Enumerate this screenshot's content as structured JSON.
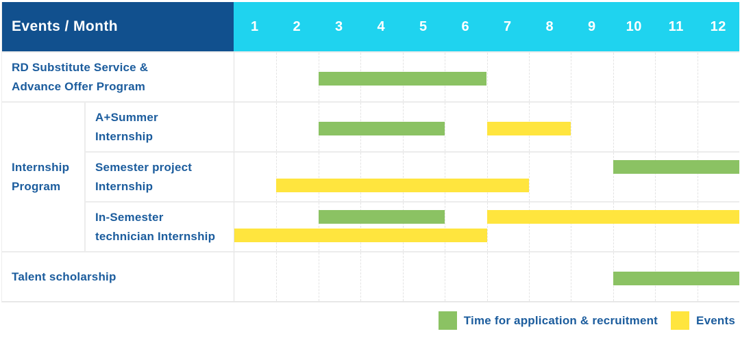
{
  "header": {
    "title": "Events / Month",
    "months": [
      "1",
      "2",
      "3",
      "4",
      "5",
      "6",
      "7",
      "8",
      "9",
      "10",
      "11",
      "12"
    ]
  },
  "group_label_lines": [
    "Internship",
    "Program"
  ],
  "rows": [
    {
      "label_lines": [
        "RD Substitute Service &",
        "Advance Offer Program"
      ],
      "group": "",
      "bars": [
        {
          "color": "green",
          "start": 3,
          "end": 6,
          "lane": "center"
        }
      ]
    },
    {
      "label_lines": [
        "A+Summer",
        "Internship"
      ],
      "group": "Internship Program",
      "bars": [
        {
          "color": "green",
          "start": 3,
          "end": 5,
          "lane": "center"
        },
        {
          "color": "yellow",
          "start": 7,
          "end": 8,
          "lane": "center"
        }
      ]
    },
    {
      "label_lines": [
        "Semester project",
        "Internship"
      ],
      "group": "Internship Program",
      "bars": [
        {
          "color": "green",
          "start": 10,
          "end": 12,
          "lane": "top"
        },
        {
          "color": "yellow",
          "start": 2,
          "end": 7,
          "lane": "bottom"
        }
      ]
    },
    {
      "label_lines": [
        "In-Semester",
        "technician Internship"
      ],
      "group": "Internship Program",
      "bars": [
        {
          "color": "green",
          "start": 3,
          "end": 5,
          "lane": "top"
        },
        {
          "color": "yellow",
          "start": 7,
          "end": 12,
          "lane": "top"
        },
        {
          "color": "yellow",
          "start": 1,
          "end": 6,
          "lane": "bottom"
        }
      ]
    },
    {
      "label_lines": [
        "Talent scholarship"
      ],
      "group": "",
      "bars": [
        {
          "color": "green",
          "start": 10,
          "end": 12,
          "lane": "center"
        }
      ]
    }
  ],
  "legend": {
    "items": [
      {
        "color": "green",
        "label": "Time for application & recruitment"
      },
      {
        "color": "yellow",
        "label": "Events"
      }
    ]
  },
  "colors": {
    "header_bg": "#11508E",
    "month_header_bg": "#1FD3EF",
    "label_text": "#1B5C9D",
    "green_bar": "#8BC263",
    "yellow_bar": "#FFE53E",
    "grid_line": "#E3E3E3"
  },
  "chart_data": {
    "type": "bar",
    "subtype": "gantt-timeline",
    "title": "Events / Month",
    "x": {
      "label": "Month",
      "ticks": [
        1,
        2,
        3,
        4,
        5,
        6,
        7,
        8,
        9,
        10,
        11,
        12
      ],
      "range": [
        1,
        12
      ]
    },
    "legend": [
      {
        "label": "Time for application & recruitment",
        "color": "#8BC263"
      },
      {
        "label": "Events",
        "color": "#FFE53E"
      }
    ],
    "legend_position": "bottom-right",
    "grid": "vertical-dashed-per-month",
    "tasks": [
      {
        "group": "",
        "event": "RD Substitute Service & Advance Offer Program",
        "spans": [
          {
            "type": "Time for application & recruitment",
            "months": [
              3,
              6
            ]
          }
        ]
      },
      {
        "group": "Internship Program",
        "event": "A+Summer Internship",
        "spans": [
          {
            "type": "Time for application & recruitment",
            "months": [
              3,
              5
            ]
          },
          {
            "type": "Events",
            "months": [
              7,
              8
            ]
          }
        ]
      },
      {
        "group": "Internship Program",
        "event": "Semester project Internship",
        "spans": [
          {
            "type": "Time for application & recruitment",
            "months": [
              10,
              12
            ]
          },
          {
            "type": "Events",
            "months": [
              2,
              7
            ]
          }
        ]
      },
      {
        "group": "Internship Program",
        "event": "In-Semester technician Internship",
        "spans": [
          {
            "type": "Time for application & recruitment",
            "months": [
              3,
              5
            ]
          },
          {
            "type": "Events",
            "months": [
              7,
              12
            ]
          },
          {
            "type": "Events",
            "months": [
              1,
              6
            ]
          }
        ]
      },
      {
        "group": "",
        "event": "Talent scholarship",
        "spans": [
          {
            "type": "Time for application & recruitment",
            "months": [
              10,
              12
            ]
          }
        ]
      }
    ]
  }
}
